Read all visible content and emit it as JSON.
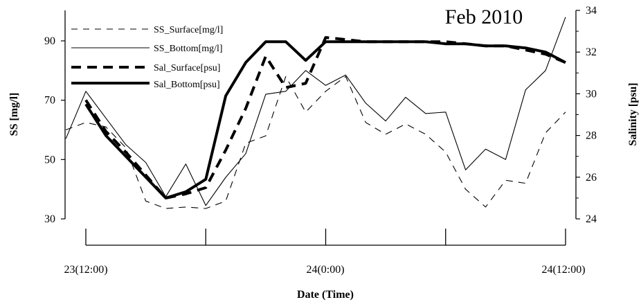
{
  "chart_data": {
    "type": "line",
    "title": "Feb 2010",
    "xlabel": "Date (Time)",
    "ylabel_left": "SS [mg/l]",
    "ylabel_right": "Salinity [psu]",
    "x_tick_labels": [
      "23(12:00)",
      "24(0:00)",
      "24(12:00)"
    ],
    "x_ticks_hours": [
      0,
      6,
      12,
      18,
      24
    ],
    "xlim_hours": [
      -1,
      24
    ],
    "ylim_left": [
      30,
      100
    ],
    "yticks_left": [
      30,
      50,
      70,
      90
    ],
    "ylim_right": [
      24,
      34
    ],
    "yticks_right": [
      24,
      26,
      28,
      30,
      32,
      34
    ],
    "grid": false,
    "legend_position": "top-left",
    "x_unit": "hours after 23(12:00)",
    "series": [
      {
        "name": "SS_Surface[mg/l]",
        "axis": "left",
        "style": "thin-dashed",
        "x": [
          -1,
          0,
          1,
          2,
          3,
          4,
          5,
          6,
          7,
          8,
          9,
          10,
          11,
          12,
          13,
          14,
          15,
          16,
          17,
          18,
          19,
          20,
          21,
          22,
          23,
          24
        ],
        "y": [
          60,
          62.5,
          61,
          54,
          36,
          33.5,
          34,
          33.5,
          36,
          55.5,
          58,
          78,
          66,
          73,
          78,
          62.5,
          58.5,
          62,
          58.5,
          52.5,
          40,
          34,
          43,
          42,
          59,
          66
        ]
      },
      {
        "name": "SS_Bottom[mg/l]",
        "axis": "left",
        "style": "thin-solid",
        "x": [
          -1,
          0,
          1,
          2,
          3,
          4,
          5,
          6,
          7,
          8,
          9,
          10,
          11,
          12,
          13,
          14,
          15,
          16,
          17,
          18,
          19,
          20,
          21,
          22,
          23,
          24
        ],
        "y": [
          57,
          73,
          64,
          55,
          49,
          37.5,
          48.5,
          34.5,
          44,
          52,
          72,
          73,
          80,
          75,
          78.5,
          69,
          63,
          71,
          65.5,
          66,
          46.5,
          53.5,
          50,
          73.5,
          80,
          98
        ]
      },
      {
        "name": "Sal_Surface[psu]",
        "axis": "right",
        "style": "thick-dashed",
        "x": [
          0,
          1,
          2,
          3,
          4,
          5,
          6,
          7,
          8,
          9,
          10,
          11,
          12,
          13,
          14,
          15,
          16,
          17,
          18,
          19,
          20,
          21,
          22,
          23,
          24
        ],
        "y": [
          29.7,
          28.2,
          27.2,
          26.1,
          25.0,
          25.2,
          25.5,
          27.3,
          29.3,
          31.8,
          30.3,
          30.5,
          32.7,
          32.6,
          32.5,
          32.5,
          32.5,
          32.5,
          32.5,
          32.4,
          32.3,
          32.3,
          32.1,
          31.9,
          31.5
        ]
      },
      {
        "name": "Sal_Bottom[psu]",
        "axis": "right",
        "style": "thick-solid",
        "x": [
          0,
          1,
          2,
          3,
          4,
          5,
          6,
          7,
          8,
          9,
          10,
          11,
          12,
          13,
          14,
          15,
          16,
          17,
          18,
          19,
          20,
          21,
          22,
          23,
          24
        ],
        "y": [
          29.5,
          28.0,
          27.0,
          26.0,
          25.0,
          25.3,
          25.9,
          29.9,
          31.5,
          32.5,
          32.5,
          31.6,
          32.5,
          32.5,
          32.5,
          32.5,
          32.5,
          32.5,
          32.4,
          32.4,
          32.3,
          32.3,
          32.2,
          32.0,
          31.5
        ]
      }
    ]
  }
}
